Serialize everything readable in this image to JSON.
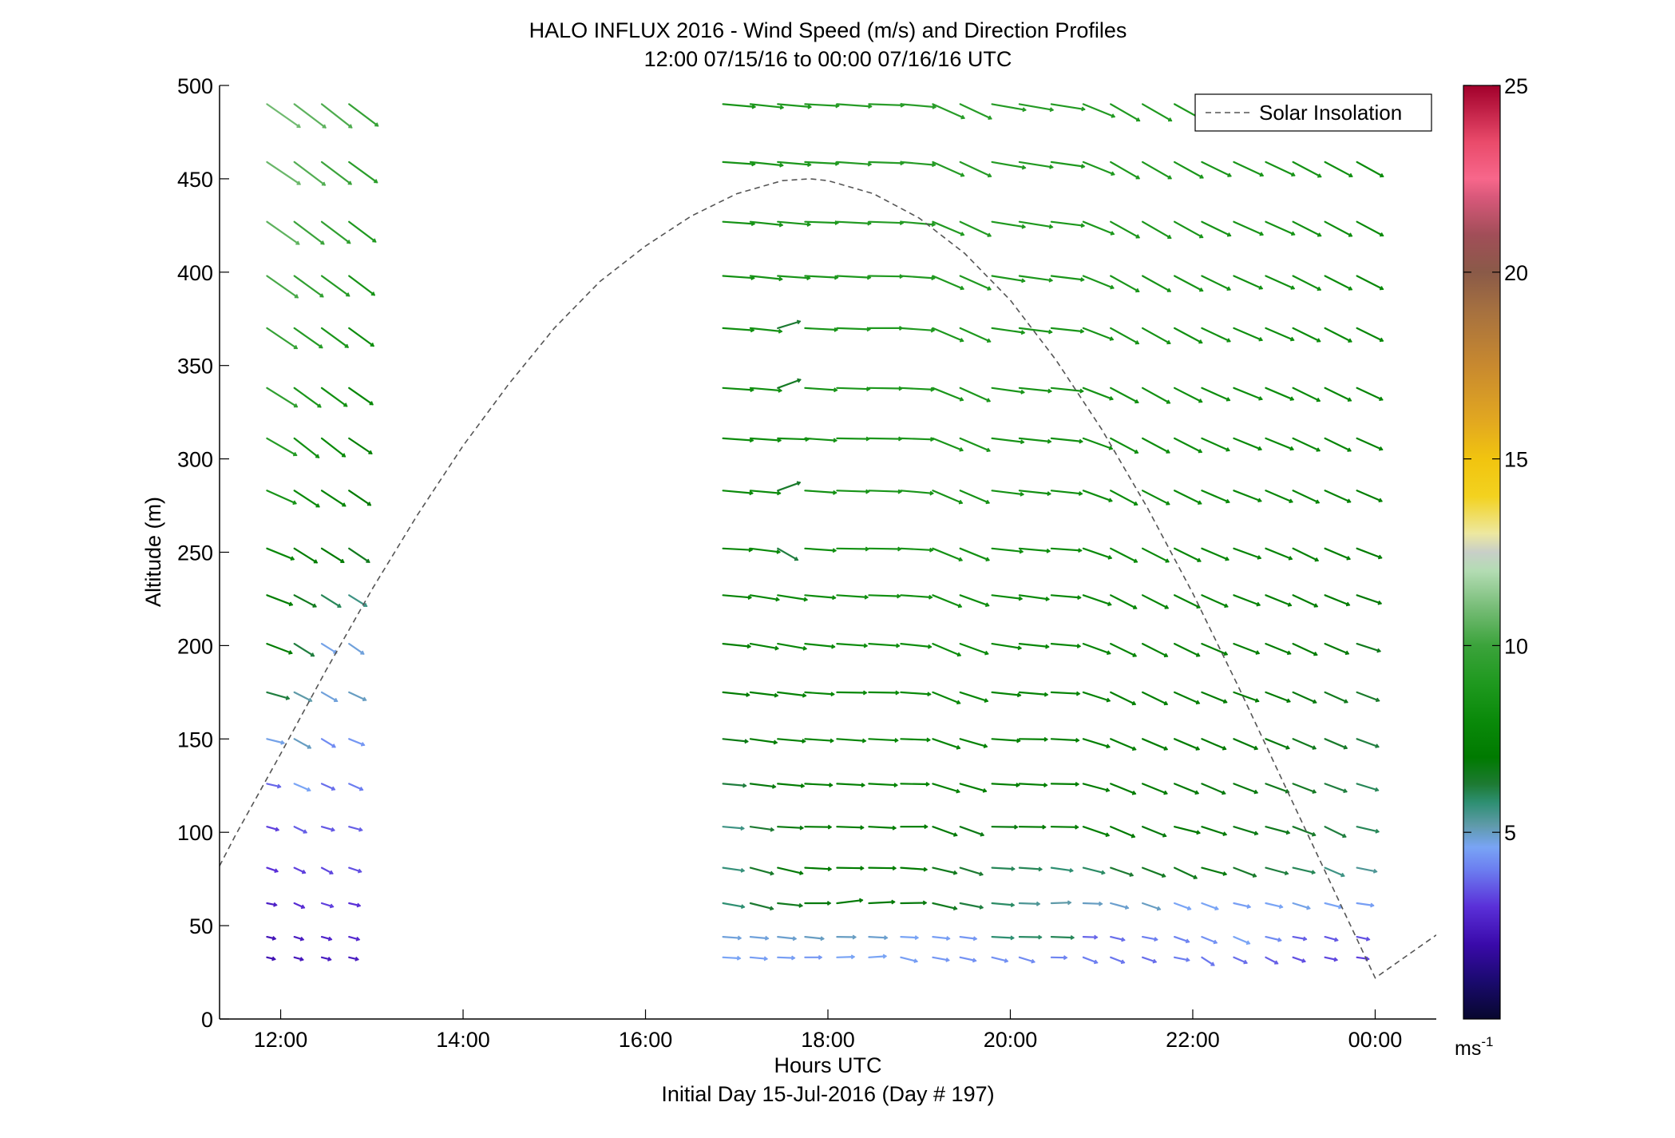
{
  "chart_data": {
    "type": "quiver",
    "title": "HALO INFLUX 2016 - Wind Speed (m/s) and Direction Profiles",
    "subtitle": "12:00 07/15/16 to 00:00 07/16/16  UTC",
    "xlabel": "Hours UTC",
    "xlabel2": "Initial Day 15-Jul-2016 (Day # 197)",
    "ylabel": "Altitude (m)",
    "xlim": [
      11.33,
      24.67
    ],
    "ylim": [
      0,
      500
    ],
    "x_ticks": [
      12,
      14,
      16,
      18,
      20,
      22,
      24
    ],
    "x_tick_labels": [
      "12:00",
      "14:00",
      "16:00",
      "18:00",
      "20:00",
      "22:00",
      "00:00"
    ],
    "y_ticks": [
      0,
      50,
      100,
      150,
      200,
      250,
      300,
      350,
      400,
      450,
      500
    ],
    "y_tick_labels": [
      "0",
      "50",
      "100",
      "150",
      "200",
      "250",
      "300",
      "350",
      "400",
      "450",
      "500"
    ],
    "grid": false,
    "legend": {
      "position": "top-right",
      "entries": [
        {
          "name": "Solar Insolation",
          "style": "dashed",
          "color": "#555555"
        }
      ]
    },
    "colorbar": {
      "min": 0,
      "max": 25,
      "ticks": [
        5,
        10,
        15,
        20,
        25
      ],
      "tick_labels": [
        "5",
        "10",
        "15",
        "20",
        "25"
      ],
      "unit_label": "ms",
      "unit_superscript": "-1",
      "stops": [
        [
          0,
          "#07072e"
        ],
        [
          1,
          "#1a0a6e"
        ],
        [
          2,
          "#3a0aaa"
        ],
        [
          3,
          "#5a2fd8"
        ],
        [
          4,
          "#6c7ef0"
        ],
        [
          4.6,
          "#79a4f5"
        ],
        [
          5.2,
          "#5e9aa8"
        ],
        [
          5.8,
          "#2e8f72"
        ],
        [
          6.3,
          "#1d7a32"
        ],
        [
          7,
          "#007a00"
        ],
        [
          8,
          "#0a8a0a"
        ],
        [
          9,
          "#1f991f"
        ],
        [
          10,
          "#3ba33b"
        ],
        [
          11,
          "#76bc76"
        ],
        [
          12,
          "#b3dcb3"
        ],
        [
          12.5,
          "#c8cfc8"
        ],
        [
          13,
          "#ede8a0"
        ],
        [
          14,
          "#f3d21f"
        ],
        [
          15,
          "#f1c40f"
        ],
        [
          16,
          "#e2a820"
        ],
        [
          17.5,
          "#c8892f"
        ],
        [
          19,
          "#a57040"
        ],
        [
          20,
          "#8a5a48"
        ],
        [
          21,
          "#a14e58"
        ],
        [
          22,
          "#d8587a"
        ],
        [
          22.5,
          "#f7678b"
        ],
        [
          23.5,
          "#e94a6a"
        ],
        [
          25,
          "#a1002b"
        ]
      ]
    },
    "solar_insolation": {
      "peak_time": 17.8,
      "peak_altitude": 450,
      "x": [
        11.33,
        11.5,
        12,
        12.5,
        13,
        13.5,
        14,
        14.5,
        15,
        15.5,
        16,
        16.5,
        17,
        17.5,
        17.8,
        18,
        18.5,
        19,
        19.5,
        20,
        20.5,
        21,
        21.5,
        22,
        22.5,
        23,
        23.5,
        24,
        24.67
      ],
      "y": [
        82,
        98,
        142,
        187,
        230,
        270,
        307,
        340,
        370,
        395,
        414,
        430,
        442,
        449,
        450,
        449,
        442,
        429,
        410,
        385,
        353,
        316,
        274,
        228,
        178,
        126,
        74,
        22,
        45
      ]
    },
    "barb_times": [
      11.85,
      12.15,
      12.45,
      12.75,
      16.85,
      17.15,
      17.45,
      17.75,
      18.1,
      18.45,
      18.8,
      19.15,
      19.45,
      19.8,
      20.1,
      20.45,
      20.8,
      21.1,
      21.45,
      21.8,
      22.1,
      22.45,
      22.8,
      23.1,
      23.45,
      23.8
    ],
    "barb_altitudes": [
      33,
      44,
      62,
      81,
      103,
      126,
      150,
      175,
      201,
      227,
      252,
      283,
      311,
      338,
      370,
      398,
      427,
      459,
      490
    ],
    "wind_speed_ms": [
      [
        2.2,
        2.4,
        2.5,
        2.5,
        4.6,
        4.5,
        4.5,
        4.4,
        4.6,
        4.6,
        4.5,
        4.4,
        4.3,
        4.3,
        4.2,
        4.1,
        4.0,
        3.9,
        3.8,
        4.0,
        3.9,
        3.8,
        3.6,
        3.4,
        3.3,
        3.2
      ],
      [
        2.3,
        2.5,
        2.7,
        2.8,
        4.8,
        4.8,
        4.9,
        5.0,
        5.0,
        4.9,
        4.6,
        4.5,
        4.4,
        5.8,
        5.9,
        6.0,
        3.7,
        3.8,
        4.0,
        4.1,
        4.3,
        4.6,
        4.2,
        3.6,
        3.5,
        3.4
      ],
      [
        2.6,
        2.9,
        3.2,
        3.0,
        5.8,
        6.3,
        6.6,
        6.8,
        6.9,
        6.9,
        6.8,
        6.6,
        6.2,
        5.9,
        5.4,
        5.2,
        5.0,
        4.9,
        5.0,
        4.6,
        4.6,
        4.5,
        4.6,
        4.7,
        4.6,
        4.5
      ],
      [
        3.0,
        3.2,
        3.3,
        3.4,
        5.7,
        6.4,
        6.9,
        7.0,
        7.1,
        7.2,
        7.0,
        6.6,
        6.3,
        6.0,
        6.0,
        5.8,
        5.9,
        6.3,
        6.5,
        6.6,
        6.8,
        6.4,
        6.2,
        6.0,
        5.6,
        5.4
      ],
      [
        3.2,
        3.6,
        3.5,
        3.6,
        5.6,
        6.3,
        6.8,
        7.0,
        7.1,
        7.2,
        7.1,
        6.9,
        6.7,
        6.8,
        7.0,
        7.2,
        7.3,
        7.0,
        6.8,
        7.0,
        6.9,
        6.7,
        6.6,
        6.4,
        6.2,
        6.0
      ],
      [
        3.7,
        4.6,
        3.8,
        4.0,
        6.2,
        6.8,
        7.1,
        7.3,
        7.4,
        7.6,
        7.6,
        7.5,
        7.3,
        7.3,
        7.4,
        7.3,
        7.2,
        7.2,
        7.1,
        6.9,
        6.8,
        6.8,
        6.6,
        6.5,
        6.2,
        6.0
      ],
      [
        4.7,
        5.0,
        4.2,
        4.4,
        6.7,
        7.2,
        7.4,
        7.6,
        7.7,
        7.8,
        7.8,
        7.7,
        7.5,
        7.5,
        7.5,
        7.4,
        7.4,
        7.3,
        7.2,
        7.2,
        7.0,
        6.9,
        6.8,
        6.6,
        6.4,
        6.2
      ],
      [
        6.2,
        5.2,
        4.8,
        5.0,
        7.1,
        7.4,
        7.6,
        7.8,
        7.9,
        8.0,
        8.0,
        7.9,
        7.8,
        7.7,
        7.6,
        7.6,
        7.5,
        7.4,
        7.4,
        7.3,
        7.2,
        7.1,
        7.0,
        6.8,
        6.6,
        6.4
      ],
      [
        7.2,
        6.2,
        4.7,
        4.8,
        7.4,
        7.6,
        7.8,
        8.0,
        8.1,
        8.2,
        8.2,
        8.1,
        8.0,
        7.9,
        7.9,
        7.8,
        7.7,
        7.6,
        7.5,
        7.5,
        7.4,
        7.3,
        7.2,
        7.1,
        6.9,
        6.6
      ],
      [
        7.3,
        6.6,
        6.0,
        5.6,
        7.6,
        7.8,
        8.0,
        8.2,
        8.3,
        8.4,
        8.4,
        8.3,
        8.2,
        8.1,
        8.0,
        7.9,
        7.9,
        7.8,
        7.7,
        7.6,
        7.6,
        7.5,
        7.4,
        7.2,
        7.1,
        6.9
      ],
      [
        7.8,
        7.2,
        7.0,
        6.6,
        7.8,
        8.0,
        6.2,
        8.3,
        8.5,
        8.6,
        8.6,
        8.5,
        8.4,
        8.3,
        8.2,
        8.1,
        8.0,
        8.0,
        7.9,
        7.8,
        7.8,
        7.7,
        7.6,
        7.5,
        7.3,
        7.1
      ],
      [
        8.6,
        8.0,
        7.6,
        7.0,
        8.0,
        8.1,
        6.4,
        8.4,
        8.6,
        8.7,
        8.7,
        8.6,
        8.5,
        8.5,
        8.4,
        8.3,
        8.2,
        8.1,
        8.1,
        8.0,
        8.0,
        7.9,
        7.8,
        7.7,
        7.5,
        7.3
      ],
      [
        9.2,
        8.4,
        8.0,
        7.4,
        8.1,
        8.2,
        8.3,
        8.5,
        8.7,
        8.8,
        8.8,
        8.7,
        8.7,
        8.6,
        8.5,
        8.4,
        8.3,
        8.3,
        8.2,
        8.2,
        8.1,
        8.0,
        8.0,
        7.9,
        7.7,
        7.5
      ],
      [
        9.6,
        8.8,
        8.4,
        7.8,
        8.2,
        8.4,
        6.5,
        8.6,
        8.8,
        8.9,
        8.9,
        8.8,
        8.8,
        8.7,
        8.6,
        8.6,
        8.5,
        8.4,
        8.4,
        8.3,
        8.2,
        8.2,
        8.1,
        8.0,
        7.8,
        7.6
      ],
      [
        9.8,
        9.2,
        8.8,
        8.2,
        8.3,
        8.5,
        6.3,
        8.7,
        8.9,
        9.0,
        9.0,
        8.9,
        8.9,
        8.8,
        8.8,
        8.7,
        8.6,
        8.6,
        8.5,
        8.4,
        8.4,
        8.3,
        8.2,
        8.1,
        8.0,
        7.8
      ],
      [
        10.2,
        9.6,
        9.2,
        8.6,
        8.4,
        8.6,
        8.7,
        8.8,
        9.0,
        9.1,
        9.1,
        9.0,
        9.0,
        8.9,
        8.9,
        8.8,
        8.8,
        8.7,
        8.6,
        8.6,
        8.5,
        8.4,
        8.4,
        8.3,
        8.1,
        7.9
      ],
      [
        10.6,
        10.0,
        9.6,
        9.0,
        8.5,
        8.7,
        8.8,
        8.9,
        9.1,
        9.2,
        9.2,
        9.1,
        9.1,
        9.0,
        9.0,
        8.9,
        8.9,
        8.8,
        8.8,
        8.7,
        8.6,
        8.6,
        8.5,
        8.4,
        8.2,
        8.0
      ],
      [
        10.8,
        10.4,
        10.0,
        9.4,
        8.6,
        8.8,
        8.9,
        9.0,
        9.2,
        9.3,
        9.3,
        9.2,
        9.2,
        9.1,
        9.1,
        9.0,
        9.0,
        8.9,
        8.9,
        8.8,
        8.7,
        8.7,
        8.6,
        8.5,
        8.3,
        8.1
      ],
      [
        10.9,
        10.6,
        10.3,
        9.8,
        8.7,
        8.9,
        9.0,
        9.1,
        9.3,
        9.4,
        9.4,
        9.3,
        9.3,
        9.2,
        9.2,
        9.1,
        9.1,
        9.0,
        9.0,
        8.9,
        8.8,
        8.8,
        8.7,
        8.6,
        8.4,
        8.2
      ]
    ],
    "wind_direction_deg": [
      [
        283,
        285,
        284,
        283,
        273,
        275,
        272,
        270,
        268,
        266,
        284,
        280,
        282,
        284,
        287,
        271,
        291,
        291,
        289,
        281,
        303,
        293,
        297,
        289,
        282,
        278
      ],
      [
        283,
        287,
        285,
        285,
        274,
        275,
        276,
        276,
        271,
        273,
        273,
        276,
        277,
        273,
        271,
        272,
        272,
        283,
        281,
        289,
        292,
        293,
        283,
        280,
        285,
        282
      ],
      [
        281,
        294,
        287,
        283,
        280,
        284,
        276,
        270,
        263,
        267,
        269,
        283,
        281,
        275,
        272,
        268,
        272,
        285,
        289,
        290,
        290,
        283,
        283,
        287,
        284,
        278
      ],
      [
        289,
        295,
        298,
        288,
        278,
        285,
        283,
        273,
        271,
        271,
        274,
        283,
        287,
        273,
        274,
        278,
        284,
        289,
        291,
        295,
        285,
        291,
        285,
        283,
        293,
        281
      ],
      [
        286,
        296,
        286,
        285,
        275,
        278,
        273,
        271,
        272,
        273,
        270,
        290,
        290,
        271,
        271,
        271,
        289,
        293,
        292,
        284,
        288,
        287,
        285,
        291,
        296,
        283
      ],
      [
        283,
        293,
        294,
        294,
        275,
        277,
        275,
        273,
        273,
        273,
        271,
        287,
        286,
        273,
        273,
        271,
        285,
        292,
        292,
        292,
        293,
        291,
        290,
        291,
        290,
        287
      ],
      [
        284,
        299,
        301,
        292,
        276,
        278,
        275,
        274,
        274,
        273,
        272,
        289,
        286,
        274,
        271,
        273,
        287,
        293,
        293,
        293,
        293,
        293,
        292,
        293,
        293,
        290
      ],
      [
        286,
        297,
        300,
        295,
        276,
        277,
        277,
        274,
        271,
        271,
        274,
        292,
        288,
        276,
        275,
        273,
        288,
        296,
        296,
        294,
        292,
        290,
        291,
        294,
        294,
        291
      ],
      [
        291,
        302,
        302,
        305,
        276,
        280,
        280,
        276,
        274,
        274,
        276,
        293,
        290,
        279,
        276,
        275,
        290,
        296,
        297,
        296,
        293,
        291,
        292,
        295,
        293,
        288
      ],
      [
        291,
        298,
        302,
        302,
        275,
        279,
        279,
        275,
        274,
        272,
        274,
        292,
        290,
        277,
        278,
        275,
        289,
        297,
        297,
        296,
        294,
        291,
        292,
        295,
        292,
        289
      ],
      [
        292,
        302,
        302,
        304,
        273,
        277,
        300,
        274,
        271,
        271,
        273,
        292,
        292,
        276,
        275,
        274,
        289,
        297,
        297,
        296,
        293,
        290,
        292,
        296,
        293,
        291
      ],
      [
        294,
        303,
        303,
        304,
        275,
        275,
        250,
        274,
        272,
        272,
        275,
        293,
        293,
        277,
        276,
        276,
        290,
        298,
        297,
        296,
        293,
        291,
        293,
        295,
        294,
        293
      ],
      [
        300,
        308,
        308,
        304,
        274,
        274,
        272,
        274,
        271,
        271,
        272,
        292,
        293,
        277,
        276,
        276,
        290,
        298,
        298,
        297,
        294,
        292,
        292,
        295,
        296,
        294
      ],
      [
        302,
        306,
        306,
        305,
        274,
        275,
        250,
        274,
        272,
        271,
        273,
        292,
        294,
        278,
        276,
        276,
        291,
        298,
        299,
        297,
        294,
        292,
        293,
        296,
        296,
        295
      ],
      [
        304,
        305,
        306,
        306,
        274,
        276,
        253,
        273,
        272,
        270,
        274,
        293,
        294,
        278,
        277,
        276,
        291,
        299,
        299,
        298,
        295,
        293,
        293,
        296,
        297,
        296
      ],
      [
        305,
        306,
        306,
        307,
        274,
        276,
        274,
        273,
        273,
        271,
        274,
        293,
        294,
        279,
        278,
        277,
        292,
        299,
        299,
        298,
        296,
        294,
        294,
        297,
        297,
        297
      ],
      [
        305,
        307,
        307,
        307,
        274,
        276,
        275,
        272,
        273,
        272,
        275,
        293,
        295,
        279,
        279,
        277,
        292,
        299,
        300,
        299,
        296,
        294,
        294,
        297,
        298,
        298
      ],
      [
        304,
        307,
        307,
        306,
        274,
        276,
        275,
        273,
        274,
        272,
        275,
        294,
        295,
        280,
        279,
        278,
        292,
        300,
        300,
        299,
        296,
        295,
        295,
        298,
        298,
        299
      ],
      [
        305,
        307,
        308,
        307,
        275,
        276,
        275,
        273,
        274,
        272,
        275,
        294,
        295,
        280,
        280,
        279,
        292,
        300,
        300,
        299,
        297,
        295,
        295,
        298,
        299,
        300
      ]
    ]
  }
}
